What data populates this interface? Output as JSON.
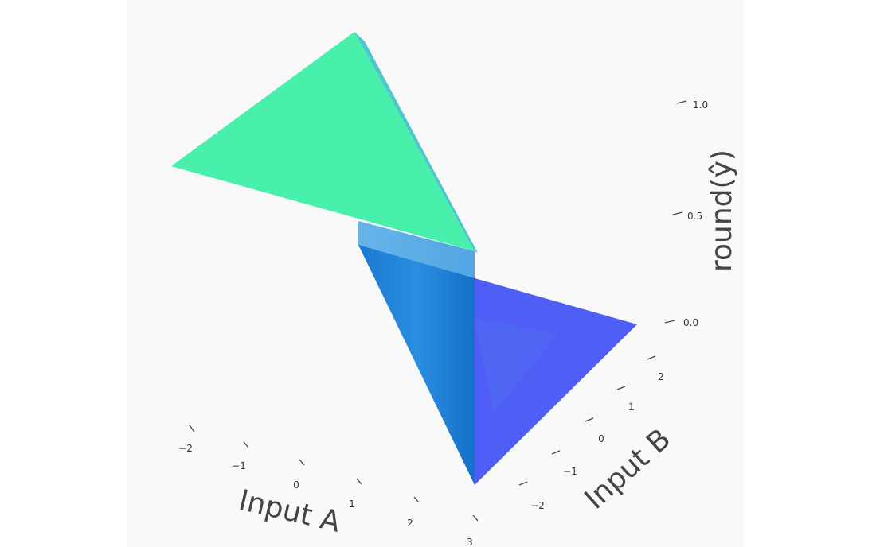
{
  "chart_data": {
    "type": "surface3d",
    "x_axis": {
      "label": "Input A",
      "ticks": [
        "−2",
        "−1",
        "0",
        "1",
        "2",
        "3"
      ]
    },
    "y_axis": {
      "label": "Input B",
      "ticks": [
        "−2",
        "−1",
        "0",
        "1",
        "2"
      ]
    },
    "z_axis": {
      "label": "round(ŷ)",
      "ticks": [
        "0.0",
        "0.5",
        "1.0"
      ]
    },
    "surfaces": [
      {
        "z": 1,
        "color": "#48f0ac"
      },
      {
        "z": 0,
        "color": "#4f5ff5"
      }
    ],
    "transition_color": "#1f86d8"
  }
}
